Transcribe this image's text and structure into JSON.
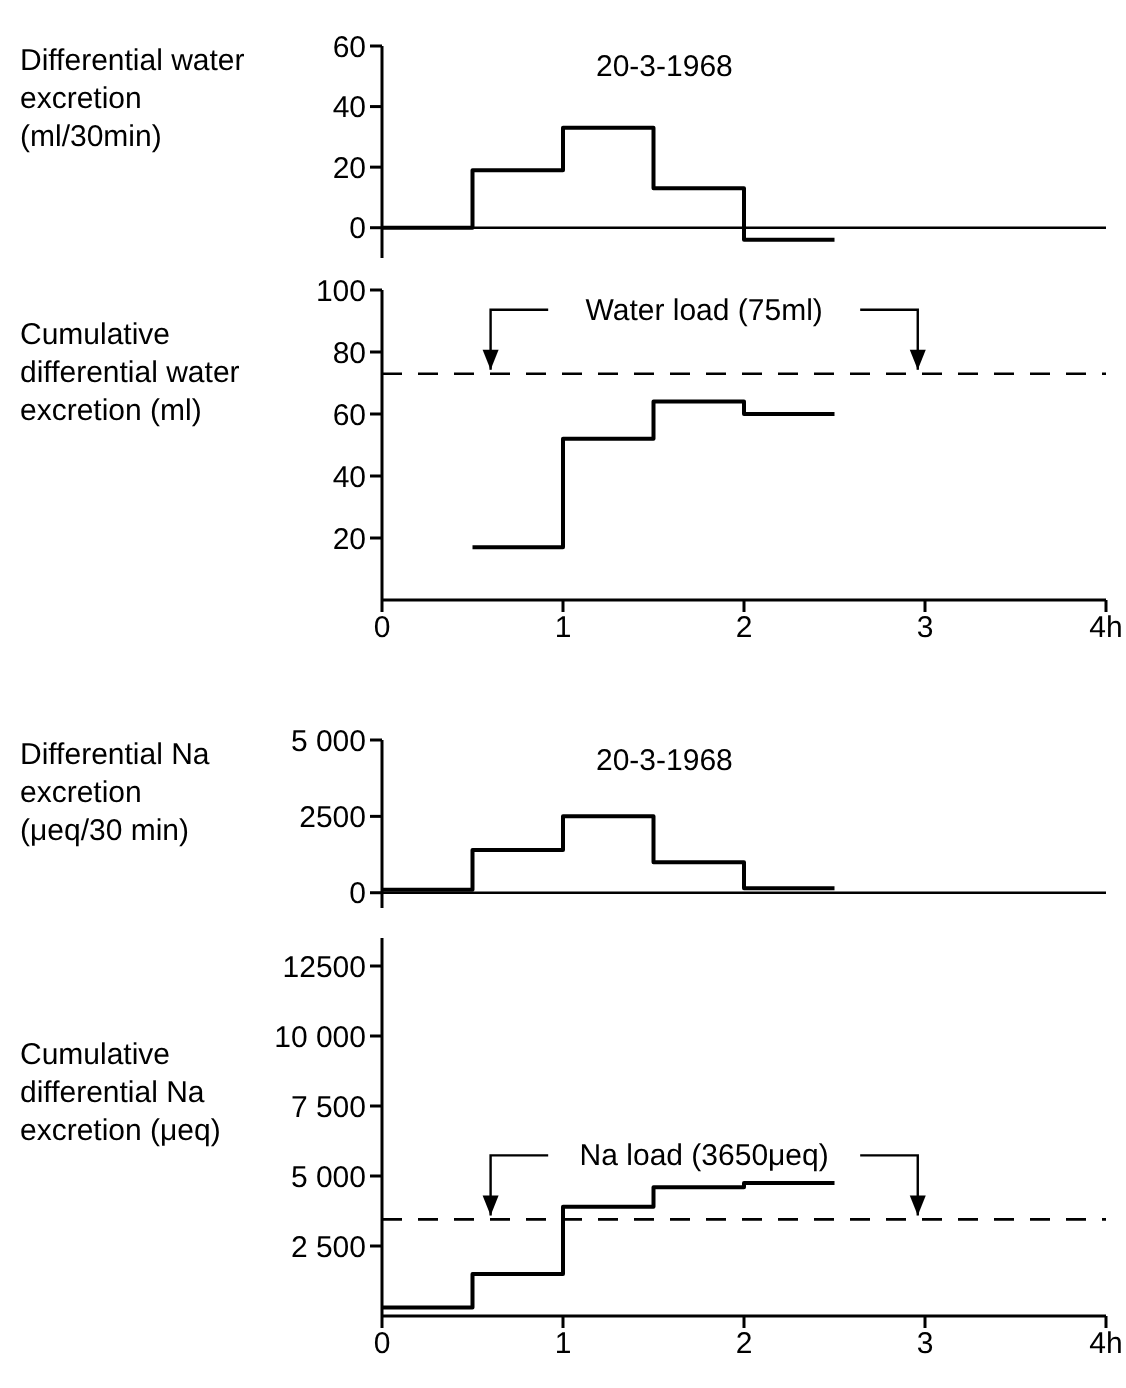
{
  "chart_data": [
    {
      "type": "step",
      "title": "20-3-1968",
      "ylabel": "Differential water excretion (ml/30min)",
      "x": [
        0,
        0.5,
        1,
        1.5,
        2,
        2.5
      ],
      "series": [
        {
          "color": "#000000",
          "values": [
            0,
            19,
            33,
            13,
            -4,
            -4
          ]
        }
      ],
      "xlim": [
        0,
        4
      ],
      "ylim": [
        -10,
        60
      ],
      "yticks": [
        0,
        20,
        40,
        60
      ],
      "tick_labels": "y",
      "ref_lines": [
        {
          "axis": "y",
          "value": 0,
          "color": "#000000",
          "line_style": "solid"
        }
      ]
    },
    {
      "type": "step",
      "ylabel": "Cumulative differential water excretion (ml)",
      "x": [
        0.5,
        1,
        1.5,
        2,
        2.5
      ],
      "series": [
        {
          "color": "#000000",
          "values": [
            17,
            52,
            64,
            60,
            60
          ]
        }
      ],
      "xlim": [
        0,
        4
      ],
      "xticks": [
        0,
        1,
        2,
        3,
        {
          "value": 4,
          "label": "4h"
        }
      ],
      "ylim": [
        0,
        100
      ],
      "yticks": [
        20,
        40,
        60,
        80,
        100
      ],
      "ref_lines": [
        {
          "axis": "y",
          "value": 73,
          "label": "Water load (75ml)",
          "color": "#000000",
          "line_style": "dashed"
        }
      ]
    },
    {
      "type": "step",
      "title": "20-3-1968",
      "ylabel": "Differential Na excretion (μeq/30 min)",
      "x": [
        0,
        0.5,
        1,
        1.5,
        2,
        2.5
      ],
      "series": [
        {
          "color": "#000000",
          "values": [
            100,
            1400,
            2500,
            1000,
            150,
            150
          ]
        }
      ],
      "xlim": [
        0,
        4
      ],
      "ylim": [
        -500,
        5000
      ],
      "yticks": [
        0,
        2500,
        {
          "value": 5000,
          "label": "5 000"
        }
      ],
      "tick_labels": "y",
      "ref_lines": [
        {
          "axis": "y",
          "value": 0,
          "color": "#000000",
          "line_style": "solid"
        }
      ]
    },
    {
      "type": "step",
      "ylabel": "Cumulative differential Na excretion (μeq)",
      "x": [
        0,
        0.5,
        1,
        1.5,
        2,
        2.5
      ],
      "series": [
        {
          "color": "#000000",
          "values": [
            300,
            1500,
            3900,
            4600,
            4750,
            4750
          ]
        }
      ],
      "xlim": [
        0,
        4
      ],
      "xticks": [
        0,
        1,
        2,
        3,
        {
          "value": 4,
          "label": "4h"
        }
      ],
      "ylim": [
        0,
        13500
      ],
      "yticks": [
        {
          "value": 2500,
          "label": "2 500"
        },
        {
          "value": 5000,
          "label": "5 000"
        },
        {
          "value": 7500,
          "label": "7 500"
        },
        {
          "value": 10000,
          "label": "10 000"
        },
        12500
      ],
      "ref_lines": [
        {
          "axis": "y",
          "value": 3450,
          "label": "Na load (3650μeq)",
          "color": "#000000",
          "line_style": "dashed"
        }
      ]
    }
  ]
}
